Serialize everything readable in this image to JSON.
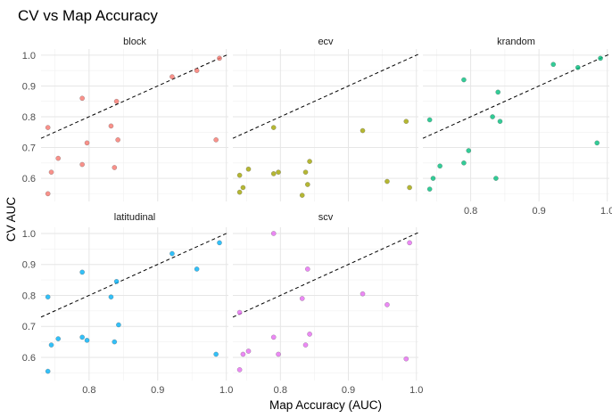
{
  "chart_data": {
    "type": "scatter",
    "title": "CV vs Map Accuracy",
    "xlabel": "Map Accuracy (AUC)",
    "ylabel": "CV AUC",
    "xlim": [
      0.73,
      1.003
    ],
    "ylim": [
      0.525,
      1.02
    ],
    "x_ticks": [
      {
        "value": 0.8,
        "label": "0.8"
      },
      {
        "value": 0.9,
        "label": "0.9"
      },
      {
        "value": 1.0,
        "label": "1.0"
      }
    ],
    "y_ticks": [
      {
        "value": 0.6,
        "label": "0.6"
      },
      {
        "value": 0.7,
        "label": "0.7"
      },
      {
        "value": 0.8,
        "label": "0.8"
      },
      {
        "value": 0.9,
        "label": "0.9"
      },
      {
        "value": 1.0,
        "label": "1.0"
      }
    ],
    "grid": true,
    "reference_line": "y = x (dashed)",
    "facets": [
      {
        "name": "block",
        "color": "#F8766D",
        "points": [
          {
            "x": 0.74,
            "y": 0.55
          },
          {
            "x": 0.74,
            "y": 0.765
          },
          {
            "x": 0.745,
            "y": 0.62
          },
          {
            "x": 0.755,
            "y": 0.665
          },
          {
            "x": 0.79,
            "y": 0.645
          },
          {
            "x": 0.79,
            "y": 0.86
          },
          {
            "x": 0.797,
            "y": 0.715
          },
          {
            "x": 0.832,
            "y": 0.77
          },
          {
            "x": 0.837,
            "y": 0.635
          },
          {
            "x": 0.84,
            "y": 0.85
          },
          {
            "x": 0.842,
            "y": 0.725
          },
          {
            "x": 0.921,
            "y": 0.93
          },
          {
            "x": 0.957,
            "y": 0.95
          },
          {
            "x": 0.985,
            "y": 0.725
          },
          {
            "x": 0.99,
            "y": 0.99
          }
        ]
      },
      {
        "name": "ecv",
        "color": "#A3A500",
        "points": [
          {
            "x": 0.74,
            "y": 0.61
          },
          {
            "x": 0.74,
            "y": 0.555
          },
          {
            "x": 0.745,
            "y": 0.57
          },
          {
            "x": 0.753,
            "y": 0.63
          },
          {
            "x": 0.79,
            "y": 0.765
          },
          {
            "x": 0.79,
            "y": 0.615
          },
          {
            "x": 0.797,
            "y": 0.62
          },
          {
            "x": 0.832,
            "y": 0.545
          },
          {
            "x": 0.837,
            "y": 0.62
          },
          {
            "x": 0.84,
            "y": 0.58
          },
          {
            "x": 0.843,
            "y": 0.655
          },
          {
            "x": 0.921,
            "y": 0.755
          },
          {
            "x": 0.957,
            "y": 0.59
          },
          {
            "x": 0.985,
            "y": 0.785
          },
          {
            "x": 0.99,
            "y": 0.57
          }
        ]
      },
      {
        "name": "krandom",
        "color": "#00BF7D",
        "points": [
          {
            "x": 0.74,
            "y": 0.79
          },
          {
            "x": 0.74,
            "y": 0.565
          },
          {
            "x": 0.745,
            "y": 0.6
          },
          {
            "x": 0.755,
            "y": 0.64
          },
          {
            "x": 0.79,
            "y": 0.65
          },
          {
            "x": 0.79,
            "y": 0.92
          },
          {
            "x": 0.797,
            "y": 0.69
          },
          {
            "x": 0.832,
            "y": 0.8
          },
          {
            "x": 0.837,
            "y": 0.6
          },
          {
            "x": 0.84,
            "y": 0.88
          },
          {
            "x": 0.843,
            "y": 0.785
          },
          {
            "x": 0.921,
            "y": 0.97
          },
          {
            "x": 0.957,
            "y": 0.96
          },
          {
            "x": 0.985,
            "y": 0.715
          },
          {
            "x": 0.99,
            "y": 0.99
          }
        ]
      },
      {
        "name": "latitudinal",
        "color": "#00B0F6",
        "points": [
          {
            "x": 0.74,
            "y": 0.795
          },
          {
            "x": 0.74,
            "y": 0.555
          },
          {
            "x": 0.745,
            "y": 0.64
          },
          {
            "x": 0.755,
            "y": 0.66
          },
          {
            "x": 0.79,
            "y": 0.665
          },
          {
            "x": 0.79,
            "y": 0.875
          },
          {
            "x": 0.797,
            "y": 0.655
          },
          {
            "x": 0.832,
            "y": 0.795
          },
          {
            "x": 0.837,
            "y": 0.65
          },
          {
            "x": 0.84,
            "y": 0.845
          },
          {
            "x": 0.843,
            "y": 0.705
          },
          {
            "x": 0.921,
            "y": 0.935
          },
          {
            "x": 0.957,
            "y": 0.885
          },
          {
            "x": 0.985,
            "y": 0.61
          },
          {
            "x": 0.99,
            "y": 0.97
          }
        ]
      },
      {
        "name": "scv",
        "color": "#E76BF3",
        "points": [
          {
            "x": 0.74,
            "y": 0.745
          },
          {
            "x": 0.74,
            "y": 0.56
          },
          {
            "x": 0.745,
            "y": 0.61
          },
          {
            "x": 0.753,
            "y": 0.62
          },
          {
            "x": 0.79,
            "y": 0.665
          },
          {
            "x": 0.79,
            "y": 1.0
          },
          {
            "x": 0.797,
            "y": 0.61
          },
          {
            "x": 0.832,
            "y": 0.79
          },
          {
            "x": 0.837,
            "y": 0.64
          },
          {
            "x": 0.84,
            "y": 0.885
          },
          {
            "x": 0.843,
            "y": 0.675
          },
          {
            "x": 0.921,
            "y": 0.805
          },
          {
            "x": 0.957,
            "y": 0.77
          },
          {
            "x": 0.985,
            "y": 0.595
          },
          {
            "x": 0.99,
            "y": 0.97
          }
        ]
      }
    ]
  }
}
